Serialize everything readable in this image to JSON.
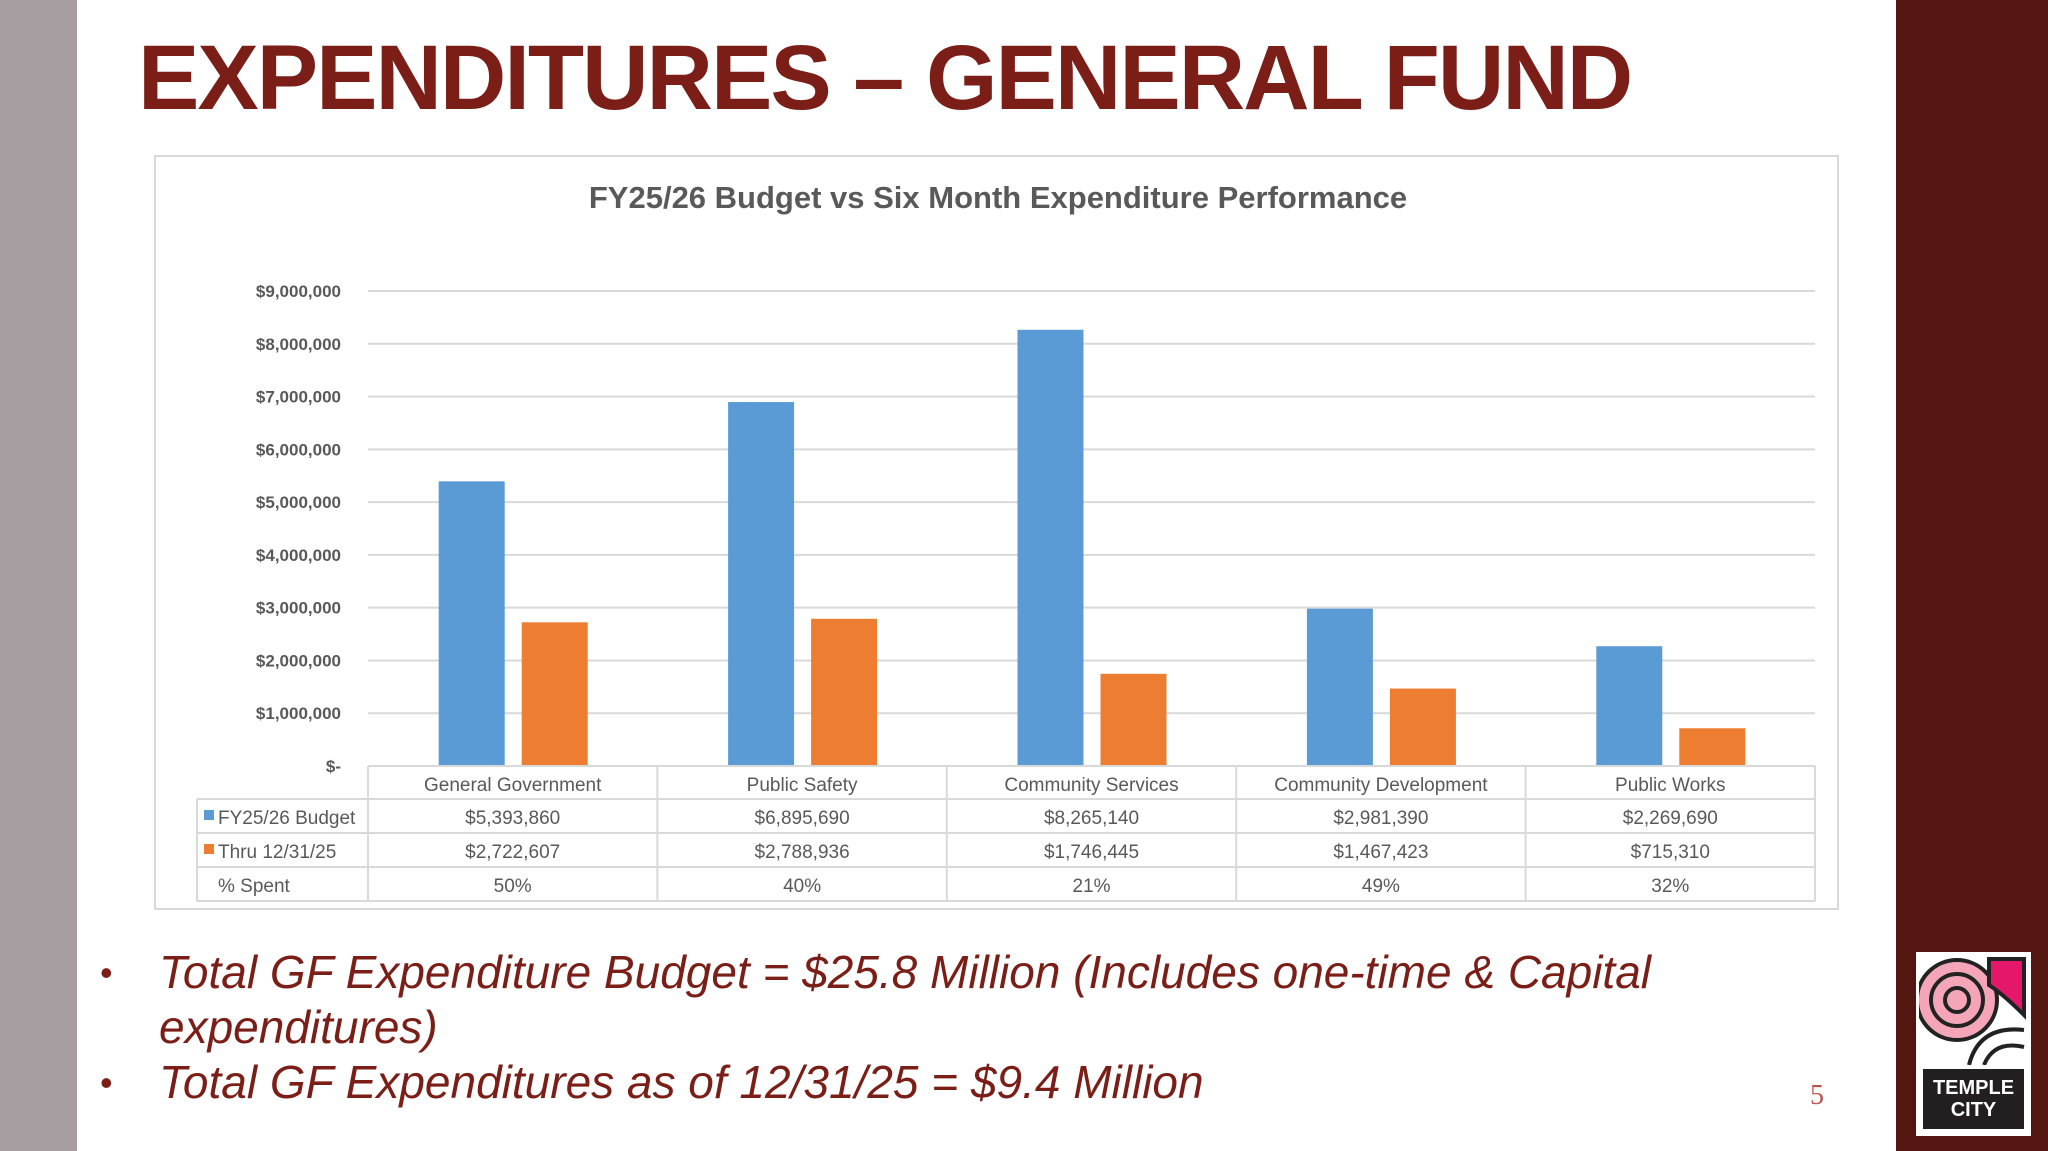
{
  "title": "EXPENDITURES – GENERAL FUND",
  "colors": {
    "budget": "#5b9bd5",
    "actual": "#ed7d31",
    "title": "#7a1e17"
  },
  "chart_data": {
    "type": "bar",
    "title": "FY25/26 Budget vs Six Month Expenditure Performance",
    "categories": [
      "General Government",
      "Public Safety",
      "Community Services",
      "Community Development",
      "Public Works"
    ],
    "series": [
      {
        "name": "FY25/26 Budget",
        "values": [
          5393860,
          6895690,
          8265140,
          2981390,
          2269690
        ],
        "labels": [
          "$5,393,860",
          "$6,895,690",
          "$8,265,140",
          "$2,981,390",
          "$2,269,690"
        ]
      },
      {
        "name": "Thru 12/31/25",
        "values": [
          2722607,
          2788936,
          1746445,
          1467423,
          715310
        ],
        "labels": [
          "$2,722,607",
          "$2,788,936",
          "$1,746,445",
          "$1,467,423",
          "$715,310"
        ]
      }
    ],
    "extra_row": {
      "name": "% Spent",
      "values": [
        "50%",
        "40%",
        "21%",
        "49%",
        "32%"
      ]
    },
    "ylim": [
      0,
      9000000
    ],
    "yticks": [
      0,
      1000000,
      2000000,
      3000000,
      4000000,
      5000000,
      6000000,
      7000000,
      8000000,
      9000000
    ],
    "ytick_labels": [
      "$-",
      "$1,000,000",
      "$2,000,000",
      "$3,000,000",
      "$4,000,000",
      "$5,000,000",
      "$6,000,000",
      "$7,000,000",
      "$8,000,000",
      "$9,000,000"
    ],
    "grid": true,
    "legend": "data-table"
  },
  "bullets": [
    "Total GF Expenditure Budget = $25.8 Million (Includes one-time & Capital expenditures)",
    "Total GF Expenditures as of 12/31/25 = $9.4 Million"
  ],
  "page_number": "5",
  "logo": {
    "line1": "TEMPLE",
    "line2": "CITY"
  }
}
